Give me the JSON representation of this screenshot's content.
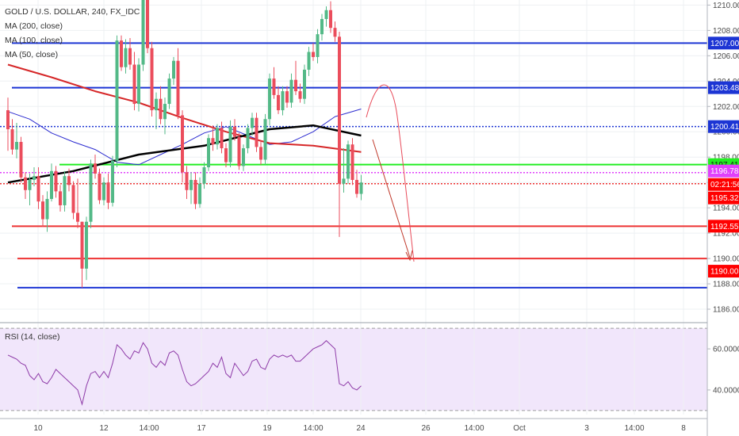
{
  "legend": {
    "symbol": "GOLD / U.S. DOLLAR, 240, FX_IDC",
    "ma200": "MA (200, close)",
    "ma100": "MA (100, close)",
    "ma50": "MA (50, close)",
    "rsi": "RSI (14, close)"
  },
  "chart_data": [
    {
      "type": "candlestick",
      "title": "GOLD / U.S. DOLLAR, 240, FX_IDC",
      "ylim": [
        1185.0,
        1210.4
      ],
      "y_ticks": [
        1186,
        1188,
        1190,
        1192,
        1194,
        1196,
        1198,
        1200,
        1202,
        1204,
        1206,
        1208,
        1210
      ],
      "y_tick_labels": [
        "1186.00",
        "1188.00",
        "1190.00",
        "1192.00",
        "1194.00",
        "1196.00",
        "1198.00",
        "1200.00",
        "1202.00",
        "1204.00",
        "1206.00",
        "1208.00",
        "1210.00"
      ],
      "x_tick_labels": [
        "10",
        "12",
        "14:00",
        "17",
        "19",
        "14:00",
        "24",
        "26",
        "14:00",
        "Oct",
        "3",
        "14:00",
        "8"
      ],
      "colors": {
        "up": "#53b987",
        "down": "#eb4d5c",
        "ma200": "#000000",
        "ma100": "#d62728",
        "ma50": "#2c2cd0"
      },
      "candles": [
        [
          1201.7,
          1202.7,
          1198.5,
          1200.2
        ],
        [
          1200.2,
          1201.0,
          1198.2,
          1198.6
        ],
        [
          1198.6,
          1200.7,
          1197.9,
          1199.2
        ],
        [
          1199.2,
          1199.6,
          1196.0,
          1196.4
        ],
        [
          1196.4,
          1196.8,
          1194.7,
          1195.4
        ],
        [
          1195.4,
          1196.7,
          1194.2,
          1196.2
        ],
        [
          1196.2,
          1197.2,
          1195.7,
          1196.5
        ],
        [
          1196.5,
          1197.2,
          1193.9,
          1194.5
        ],
        [
          1194.5,
          1195.0,
          1192.5,
          1193.1
        ],
        [
          1193.1,
          1195.3,
          1192.1,
          1194.7
        ],
        [
          1194.7,
          1197.5,
          1194.5,
          1196.9
        ],
        [
          1196.9,
          1197.3,
          1194.8,
          1195.3
        ],
        [
          1195.3,
          1195.8,
          1193.7,
          1194.2
        ],
        [
          1194.2,
          1196.9,
          1193.7,
          1196.5
        ],
        [
          1196.5,
          1197.1,
          1195.3,
          1195.8
        ],
        [
          1195.8,
          1196.1,
          1193.1,
          1193.6
        ],
        [
          1193.6,
          1196.3,
          1192.4,
          1192.9
        ],
        [
          1192.9,
          1192.9,
          1187.7,
          1189.2
        ],
        [
          1189.2,
          1193.3,
          1188.3,
          1192.9
        ],
        [
          1192.9,
          1197.8,
          1192.4,
          1197.5
        ],
        [
          1197.5,
          1198.2,
          1196.3,
          1196.7
        ],
        [
          1196.7,
          1197.1,
          1194.3,
          1194.6
        ],
        [
          1194.6,
          1196.4,
          1194.2,
          1196.0
        ],
        [
          1196.0,
          1196.7,
          1193.9,
          1194.4
        ],
        [
          1194.4,
          1198.1,
          1194.1,
          1197.7
        ],
        [
          1197.7,
          1207.6,
          1197.2,
          1207.2
        ],
        [
          1207.2,
          1207.6,
          1204.8,
          1205.1
        ],
        [
          1205.1,
          1207.3,
          1204.6,
          1206.6
        ],
        [
          1206.6,
          1207.4,
          1204.9,
          1205.3
        ],
        [
          1205.3,
          1206.3,
          1201.7,
          1202.2
        ],
        [
          1202.2,
          1205.8,
          1201.6,
          1205.3
        ],
        [
          1205.3,
          1211.4,
          1204.8,
          1211.0
        ],
        [
          1211.0,
          1211.4,
          1206.2,
          1206.6
        ],
        [
          1206.6,
          1207.1,
          1201.2,
          1201.7
        ],
        [
          1201.7,
          1203.1,
          1200.2,
          1202.6
        ],
        [
          1202.6,
          1203.6,
          1200.6,
          1201.0
        ],
        [
          1201.0,
          1202.7,
          1199.8,
          1202.2
        ],
        [
          1202.2,
          1204.6,
          1201.8,
          1204.2
        ],
        [
          1204.2,
          1205.9,
          1203.7,
          1205.6
        ],
        [
          1205.6,
          1206.6,
          1201.0,
          1201.3
        ],
        [
          1201.3,
          1201.7,
          1196.0,
          1196.8
        ],
        [
          1196.8,
          1197.3,
          1194.7,
          1195.4
        ],
        [
          1195.4,
          1196.8,
          1194.3,
          1196.2
        ],
        [
          1196.2,
          1196.8,
          1193.9,
          1194.3
        ],
        [
          1194.3,
          1196.4,
          1194.0,
          1195.9
        ],
        [
          1195.9,
          1197.6,
          1195.5,
          1197.2
        ],
        [
          1197.2,
          1199.8,
          1196.9,
          1199.5
        ],
        [
          1199.5,
          1200.5,
          1198.5,
          1199.0
        ],
        [
          1199.0,
          1200.6,
          1198.6,
          1200.3
        ],
        [
          1200.3,
          1200.8,
          1198.3,
          1198.7
        ],
        [
          1198.7,
          1199.1,
          1197.2,
          1197.6
        ],
        [
          1197.6,
          1200.9,
          1197.2,
          1200.4
        ],
        [
          1200.4,
          1201.0,
          1199.3,
          1199.6
        ],
        [
          1199.6,
          1199.9,
          1197.0,
          1197.3
        ],
        [
          1197.3,
          1199.0,
          1196.9,
          1198.7
        ],
        [
          1198.7,
          1200.6,
          1198.3,
          1200.3
        ],
        [
          1200.3,
          1201.5,
          1199.7,
          1201.1
        ],
        [
          1201.1,
          1201.5,
          1198.4,
          1198.8
        ],
        [
          1198.8,
          1199.3,
          1197.4,
          1197.8
        ],
        [
          1197.8,
          1201.4,
          1197.4,
          1201.0
        ],
        [
          1201.0,
          1204.6,
          1200.5,
          1204.2
        ],
        [
          1204.2,
          1205.1,
          1202.6,
          1202.9
        ],
        [
          1202.9,
          1203.6,
          1201.4,
          1201.7
        ],
        [
          1201.7,
          1203.6,
          1201.3,
          1203.2
        ],
        [
          1203.2,
          1203.6,
          1201.9,
          1202.3
        ],
        [
          1202.3,
          1204.6,
          1201.9,
          1204.1
        ],
        [
          1204.1,
          1205.6,
          1202.9,
          1203.2
        ],
        [
          1203.2,
          1203.8,
          1202.3,
          1202.6
        ],
        [
          1202.6,
          1205.3,
          1202.2,
          1204.9
        ],
        [
          1204.9,
          1206.7,
          1204.4,
          1206.3
        ],
        [
          1206.3,
          1207.0,
          1205.6,
          1205.9
        ],
        [
          1205.9,
          1208.1,
          1205.4,
          1207.7
        ],
        [
          1207.7,
          1209.3,
          1207.2,
          1208.9
        ],
        [
          1208.9,
          1209.9,
          1208.3,
          1209.6
        ],
        [
          1209.6,
          1210.3,
          1207.8,
          1208.2
        ],
        [
          1208.2,
          1208.7,
          1207.1,
          1207.5
        ],
        [
          1207.5,
          1207.9,
          1191.7,
          1195.9
        ],
        [
          1195.9,
          1198.7,
          1195.2,
          1196.3
        ],
        [
          1196.3,
          1199.3,
          1195.9,
          1199.0
        ],
        [
          1199.0,
          1199.5,
          1195.8,
          1196.2
        ],
        [
          1196.2,
          1197.0,
          1194.8,
          1195.1
        ],
        [
          1195.1,
          1196.6,
          1194.6,
          1196.0
        ]
      ],
      "ma200": [
        [
          0,
          1196.0
        ],
        [
          15,
          1196.9
        ],
        [
          30,
          1198.2
        ],
        [
          45,
          1198.9
        ],
        [
          60,
          1200.2
        ],
        [
          70,
          1200.5
        ],
        [
          81,
          1199.7
        ]
      ],
      "ma100": [
        [
          0,
          1205.3
        ],
        [
          10,
          1204.3
        ],
        [
          20,
          1203.2
        ],
        [
          30,
          1202.3
        ],
        [
          40,
          1201.1
        ],
        [
          50,
          1200.0
        ],
        [
          60,
          1199.1
        ],
        [
          70,
          1198.9
        ],
        [
          81,
          1198.4
        ]
      ],
      "ma50": [
        [
          0,
          1201.6
        ],
        [
          5,
          1201.0
        ],
        [
          10,
          1199.9
        ],
        [
          15,
          1199.2
        ],
        [
          20,
          1198.6
        ],
        [
          25,
          1197.6
        ],
        [
          30,
          1197.4
        ],
        [
          35,
          1198.2
        ],
        [
          40,
          1199.0
        ],
        [
          45,
          1199.9
        ],
        [
          50,
          1200.4
        ],
        [
          55,
          1199.7
        ],
        [
          60,
          1199.0
        ],
        [
          65,
          1199.2
        ],
        [
          70,
          1200.0
        ],
        [
          75,
          1201.2
        ],
        [
          81,
          1201.8
        ]
      ],
      "horizontal_lines": [
        {
          "value": 1207.0,
          "color": "#1c35d4",
          "style": "solid",
          "tag": "1207.00"
        },
        {
          "value": 1203.48,
          "color": "#1c35d4",
          "style": "solid",
          "tag": "1203.48"
        },
        {
          "value": 1200.41,
          "color": "#1c35d4",
          "style": "dotted",
          "tag": "1200.41"
        },
        {
          "value": 1197.41,
          "color": "#22ee22",
          "style": "solid",
          "tag": "1197.41"
        },
        {
          "value": 1196.78,
          "color": "#e040fb",
          "style": "dotted",
          "tag": "1196.78"
        },
        {
          "value": 1195.9,
          "color": "#ee3333",
          "style": "dotted",
          "tag": "02:21:56"
        },
        {
          "value": 1195.32,
          "color": "#ee3333",
          "style": "none",
          "tag": "1195.32"
        },
        {
          "value": 1192.55,
          "color": "#ee3333",
          "style": "solid",
          "tag": "1192.55"
        },
        {
          "value": 1190.0,
          "color": "#ee3333",
          "style": "solid",
          "tag": "1190.00"
        },
        {
          "value": 1187.7,
          "color": "#1c35d4",
          "style": "solid",
          "tag": ""
        }
      ]
    },
    {
      "type": "line",
      "title": "RSI (14, close)",
      "ylim": [
        28,
        72
      ],
      "y_ticks": [
        40,
        60
      ],
      "y_tick_labels": [
        "40.0000",
        "60.0000"
      ],
      "bands": [
        30,
        70
      ],
      "values": [
        57,
        56,
        55,
        53,
        52,
        47,
        45,
        48,
        44,
        43,
        46,
        50,
        48,
        46,
        44,
        42,
        40,
        33,
        42,
        48,
        49,
        46,
        49,
        46,
        53,
        62,
        60,
        57,
        55,
        59,
        58,
        63,
        60,
        53,
        51,
        54,
        52,
        58,
        59,
        57,
        50,
        44,
        42,
        43,
        45,
        47,
        49,
        53,
        51,
        56,
        48,
        46,
        53,
        50,
        47,
        49,
        54,
        55,
        51,
        50,
        55,
        57,
        56,
        57,
        56,
        57,
        54,
        54,
        56,
        58,
        60,
        61,
        62,
        64,
        62,
        60,
        43,
        42,
        44,
        41,
        40,
        42
      ]
    }
  ]
}
